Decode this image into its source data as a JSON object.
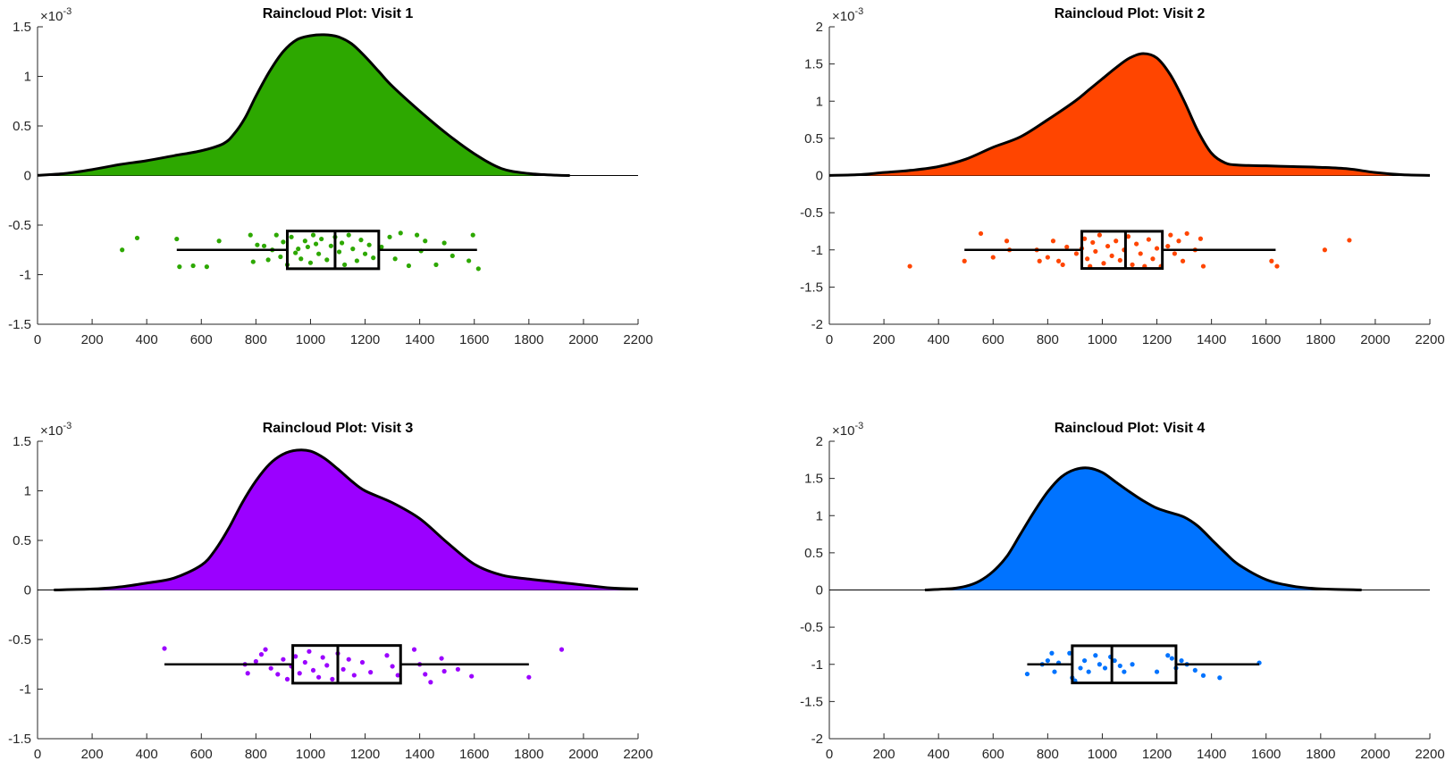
{
  "figure": {
    "background": "#ffffff"
  },
  "chart_data": [
    {
      "type": "raincloud",
      "title": "Raincloud Plot: Visit 1",
      "color": "#2DA800",
      "exponent_label": "10",
      "exponent_power": "-3",
      "xlim": [
        0,
        2200
      ],
      "ylim": [
        -1.5,
        1.5
      ],
      "xticks": [
        0,
        200,
        400,
        600,
        800,
        1000,
        1200,
        1400,
        1600,
        1800,
        2000,
        2200
      ],
      "yticks": [
        -1.5,
        -1,
        -0.5,
        0,
        0.5,
        1,
        1.5
      ],
      "xtick_labels": [
        "0",
        "200",
        "400",
        "600",
        "800",
        "1000",
        "1200",
        "1400",
        "1600",
        "1800",
        "2000",
        "2200"
      ],
      "ytick_labels": [
        "-1.5",
        "-1",
        "-0.5",
        "0",
        "0.5",
        "1",
        "1.5"
      ],
      "density": {
        "x": [
          0,
          100,
          200,
          300,
          400,
          500,
          600,
          680,
          720,
          760,
          800,
          850,
          900,
          950,
          1000,
          1050,
          1100,
          1150,
          1200,
          1250,
          1300,
          1400,
          1500,
          1600,
          1700,
          1800,
          1900,
          1950
        ],
        "y": [
          0.002,
          0.02,
          0.06,
          0.11,
          0.15,
          0.2,
          0.25,
          0.32,
          0.42,
          0.58,
          0.8,
          1.05,
          1.25,
          1.37,
          1.41,
          1.42,
          1.4,
          1.33,
          1.2,
          1.05,
          0.9,
          0.65,
          0.42,
          0.22,
          0.07,
          0.02,
          0.003,
          0.0
        ]
      },
      "boxplot": {
        "y": -0.75,
        "half_height": 0.19,
        "whisker_low": 510,
        "q1": 915,
        "median": 1090,
        "q3": 1250,
        "whisker_high": 1610
      },
      "points": [
        [
          310,
          -0.75
        ],
        [
          365,
          -0.63
        ],
        [
          510,
          -0.64
        ],
        [
          520,
          -0.92
        ],
        [
          570,
          -0.91
        ],
        [
          620,
          -0.92
        ],
        [
          665,
          -0.66
        ],
        [
          780,
          -0.6
        ],
        [
          790,
          -0.87
        ],
        [
          805,
          -0.7
        ],
        [
          830,
          -0.71
        ],
        [
          845,
          -0.85
        ],
        [
          860,
          -0.75
        ],
        [
          875,
          -0.6
        ],
        [
          890,
          -0.82
        ],
        [
          900,
          -0.67
        ],
        [
          915,
          -0.9
        ],
        [
          930,
          -0.62
        ],
        [
          945,
          -0.78
        ],
        [
          955,
          -0.74
        ],
        [
          965,
          -0.84
        ],
        [
          980,
          -0.66
        ],
        [
          990,
          -0.72
        ],
        [
          1000,
          -0.88
        ],
        [
          1010,
          -0.6
        ],
        [
          1020,
          -0.69
        ],
        [
          1030,
          -0.79
        ],
        [
          1040,
          -0.64
        ],
        [
          1060,
          -0.85
        ],
        [
          1075,
          -0.71
        ],
        [
          1090,
          -0.62
        ],
        [
          1105,
          -0.77
        ],
        [
          1115,
          -0.68
        ],
        [
          1125,
          -0.9
        ],
        [
          1140,
          -0.6
        ],
        [
          1155,
          -0.74
        ],
        [
          1170,
          -0.86
        ],
        [
          1185,
          -0.65
        ],
        [
          1200,
          -0.79
        ],
        [
          1215,
          -0.7
        ],
        [
          1230,
          -0.83
        ],
        [
          1260,
          -0.72
        ],
        [
          1290,
          -0.62
        ],
        [
          1310,
          -0.84
        ],
        [
          1330,
          -0.58
        ],
        [
          1360,
          -0.91
        ],
        [
          1390,
          -0.6
        ],
        [
          1405,
          -0.76
        ],
        [
          1420,
          -0.66
        ],
        [
          1460,
          -0.9
        ],
        [
          1490,
          -0.68
        ],
        [
          1520,
          -0.81
        ],
        [
          1580,
          -0.86
        ],
        [
          1595,
          -0.6
        ],
        [
          1615,
          -0.94
        ]
      ]
    },
    {
      "type": "raincloud",
      "title": "Raincloud Plot: Visit 2",
      "color": "#FF4500",
      "exponent_label": "10",
      "exponent_power": "-3",
      "xlim": [
        0,
        2200
      ],
      "ylim": [
        -2,
        2
      ],
      "xticks": [
        0,
        200,
        400,
        600,
        800,
        1000,
        1200,
        1400,
        1600,
        1800,
        2000,
        2200
      ],
      "yticks": [
        -2,
        -1.5,
        -1,
        -0.5,
        0,
        0.5,
        1,
        1.5,
        2
      ],
      "xtick_labels": [
        "0",
        "200",
        "400",
        "600",
        "800",
        "1000",
        "1200",
        "1400",
        "1600",
        "1800",
        "2000",
        "2200"
      ],
      "ytick_labels": [
        "-2",
        "-1.5",
        "-1",
        "-0.5",
        "0",
        "0.5",
        "1",
        "1.5",
        "2"
      ],
      "density": {
        "x": [
          0,
          100,
          200,
          300,
          400,
          500,
          600,
          700,
          800,
          900,
          950,
          1000,
          1050,
          1100,
          1150,
          1200,
          1250,
          1300,
          1350,
          1400,
          1450,
          1500,
          1600,
          1700,
          1800,
          1900,
          2000,
          2100,
          2200
        ],
        "y": [
          0.002,
          0.01,
          0.04,
          0.07,
          0.12,
          0.22,
          0.38,
          0.52,
          0.75,
          1.0,
          1.15,
          1.3,
          1.45,
          1.58,
          1.64,
          1.58,
          1.35,
          1.0,
          0.6,
          0.3,
          0.17,
          0.14,
          0.13,
          0.12,
          0.11,
          0.09,
          0.04,
          0.01,
          0.002
        ]
      },
      "boxplot": {
        "y": -1.0,
        "half_height": 0.25,
        "whisker_low": 495,
        "q1": 925,
        "median": 1085,
        "q3": 1220,
        "whisker_high": 1635
      },
      "points": [
        [
          295,
          -1.22
        ],
        [
          495,
          -1.15
        ],
        [
          555,
          -0.78
        ],
        [
          600,
          -1.1
        ],
        [
          650,
          -0.88
        ],
        [
          660,
          -1.0
        ],
        [
          760,
          -1.0
        ],
        [
          770,
          -1.15
        ],
        [
          800,
          -1.1
        ],
        [
          820,
          -0.88
        ],
        [
          840,
          -1.15
        ],
        [
          855,
          -1.2
        ],
        [
          870,
          -0.96
        ],
        [
          905,
          -1.05
        ],
        [
          925,
          -0.98
        ],
        [
          935,
          -0.85
        ],
        [
          945,
          -1.12
        ],
        [
          955,
          -1.22
        ],
        [
          965,
          -0.9
        ],
        [
          975,
          -1.02
        ],
        [
          990,
          -0.8
        ],
        [
          1005,
          -1.18
        ],
        [
          1020,
          -0.95
        ],
        [
          1035,
          -1.08
        ],
        [
          1050,
          -0.88
        ],
        [
          1065,
          -1.14
        ],
        [
          1080,
          -1.0
        ],
        [
          1095,
          -0.82
        ],
        [
          1110,
          -1.2
        ],
        [
          1125,
          -0.92
        ],
        [
          1140,
          -1.05
        ],
        [
          1155,
          -1.22
        ],
        [
          1170,
          -0.86
        ],
        [
          1185,
          -1.12
        ],
        [
          1200,
          -0.98
        ],
        [
          1215,
          -1.22
        ],
        [
          1240,
          -0.95
        ],
        [
          1250,
          -0.8
        ],
        [
          1265,
          -1.05
        ],
        [
          1280,
          -0.88
        ],
        [
          1295,
          -1.15
        ],
        [
          1310,
          -0.78
        ],
        [
          1340,
          -1.0
        ],
        [
          1360,
          -0.85
        ],
        [
          1370,
          -1.22
        ],
        [
          1620,
          -1.15
        ],
        [
          1640,
          -1.22
        ],
        [
          1815,
          -1.0
        ],
        [
          1905,
          -0.87
        ]
      ]
    },
    {
      "type": "raincloud",
      "title": "Raincloud Plot: Visit 3",
      "color": "#9B00FF",
      "exponent_label": "10",
      "exponent_power": "-3",
      "xlim": [
        0,
        2200
      ],
      "ylim": [
        -1.5,
        1.5
      ],
      "xticks": [
        0,
        200,
        400,
        600,
        800,
        1000,
        1200,
        1400,
        1600,
        1800,
        2000,
        2200
      ],
      "yticks": [
        -1.5,
        -1,
        -0.5,
        0,
        0.5,
        1,
        1.5
      ],
      "xtick_labels": [
        "0",
        "200",
        "400",
        "600",
        "800",
        "1000",
        "1200",
        "1400",
        "1600",
        "1800",
        "2000",
        "2200"
      ],
      "ytick_labels": [
        "-1.5",
        "-1",
        "-0.5",
        "0",
        "0.5",
        "1",
        "1.5"
      ],
      "density": {
        "x": [
          60,
          200,
          300,
          400,
          500,
          600,
          650,
          700,
          750,
          800,
          850,
          900,
          950,
          1000,
          1050,
          1100,
          1150,
          1200,
          1300,
          1400,
          1500,
          1600,
          1700,
          1800,
          1900,
          2000,
          2100,
          2200
        ],
        "y": [
          0.0,
          0.01,
          0.03,
          0.07,
          0.12,
          0.25,
          0.4,
          0.62,
          0.88,
          1.1,
          1.27,
          1.37,
          1.41,
          1.4,
          1.33,
          1.22,
          1.1,
          1.0,
          0.88,
          0.72,
          0.48,
          0.26,
          0.15,
          0.11,
          0.08,
          0.05,
          0.02,
          0.01
        ]
      },
      "boxplot": {
        "y": -0.75,
        "half_height": 0.19,
        "whisker_low": 465,
        "q1": 935,
        "median": 1100,
        "q3": 1330,
        "whisker_high": 1800
      },
      "points": [
        [
          465,
          -0.59
        ],
        [
          760,
          -0.75
        ],
        [
          770,
          -0.84
        ],
        [
          800,
          -0.72
        ],
        [
          820,
          -0.65
        ],
        [
          835,
          -0.6
        ],
        [
          855,
          -0.79
        ],
        [
          880,
          -0.85
        ],
        [
          900,
          -0.7
        ],
        [
          915,
          -0.9
        ],
        [
          930,
          -0.77
        ],
        [
          945,
          -0.67
        ],
        [
          960,
          -0.84
        ],
        [
          980,
          -0.73
        ],
        [
          995,
          -0.62
        ],
        [
          1010,
          -0.81
        ],
        [
          1030,
          -0.88
        ],
        [
          1045,
          -0.68
        ],
        [
          1060,
          -0.76
        ],
        [
          1080,
          -0.9
        ],
        [
          1100,
          -0.64
        ],
        [
          1120,
          -0.8
        ],
        [
          1140,
          -0.7
        ],
        [
          1160,
          -0.86
        ],
        [
          1190,
          -0.73
        ],
        [
          1220,
          -0.83
        ],
        [
          1280,
          -0.66
        ],
        [
          1300,
          -0.77
        ],
        [
          1320,
          -0.86
        ],
        [
          1380,
          -0.6
        ],
        [
          1400,
          -0.75
        ],
        [
          1420,
          -0.85
        ],
        [
          1440,
          -0.93
        ],
        [
          1480,
          -0.69
        ],
        [
          1490,
          -0.82
        ],
        [
          1540,
          -0.8
        ],
        [
          1590,
          -0.87
        ],
        [
          1800,
          -0.88
        ],
        [
          1920,
          -0.6
        ]
      ]
    },
    {
      "type": "raincloud",
      "title": "Raincloud Plot: Visit 4",
      "color": "#0073FF",
      "exponent_label": "10",
      "exponent_power": "-3",
      "xlim": [
        0,
        2200
      ],
      "ylim": [
        -2,
        2
      ],
      "xticks": [
        0,
        200,
        400,
        600,
        800,
        1000,
        1200,
        1400,
        1600,
        1800,
        2000,
        2200
      ],
      "yticks": [
        -2,
        -1.5,
        -1,
        -0.5,
        0,
        0.5,
        1,
        1.5,
        2
      ],
      "xtick_labels": [
        "0",
        "200",
        "400",
        "600",
        "800",
        "1000",
        "1200",
        "1400",
        "1600",
        "1800",
        "2000",
        "2200"
      ],
      "ytick_labels": [
        "-2",
        "-1.5",
        "-1",
        "-0.5",
        "0",
        "0.5",
        "1",
        "1.5",
        "2"
      ],
      "density": {
        "x": [
          350,
          450,
          500,
          550,
          600,
          650,
          700,
          750,
          800,
          850,
          900,
          950,
          1000,
          1050,
          1100,
          1150,
          1200,
          1250,
          1300,
          1350,
          1400,
          1450,
          1500,
          1600,
          1700,
          1800,
          1950
        ],
        "y": [
          0.0,
          0.02,
          0.05,
          0.12,
          0.25,
          0.45,
          0.75,
          1.05,
          1.32,
          1.52,
          1.62,
          1.64,
          1.58,
          1.45,
          1.32,
          1.2,
          1.1,
          1.04,
          0.98,
          0.86,
          0.68,
          0.5,
          0.34,
          0.14,
          0.05,
          0.015,
          0.0
        ]
      },
      "boxplot": {
        "y": -1.0,
        "half_height": 0.25,
        "whisker_low": 725,
        "q1": 890,
        "median": 1035,
        "q3": 1270,
        "whisker_high": 1575
      },
      "points": [
        [
          725,
          -1.13
        ],
        [
          780,
          -1.0
        ],
        [
          800,
          -0.95
        ],
        [
          815,
          -0.85
        ],
        [
          825,
          -1.1
        ],
        [
          840,
          -0.98
        ],
        [
          880,
          -0.85
        ],
        [
          890,
          -1.18
        ],
        [
          900,
          -1.22
        ],
        [
          920,
          -1.05
        ],
        [
          935,
          -0.95
        ],
        [
          950,
          -1.1
        ],
        [
          975,
          -0.88
        ],
        [
          990,
          -1.0
        ],
        [
          1010,
          -1.05
        ],
        [
          1030,
          -0.9
        ],
        [
          1045,
          -0.95
        ],
        [
          1065,
          -1.02
        ],
        [
          1080,
          -1.1
        ],
        [
          1110,
          -1.0
        ],
        [
          1200,
          -1.1
        ],
        [
          1240,
          -0.88
        ],
        [
          1255,
          -0.92
        ],
        [
          1270,
          -1.05
        ],
        [
          1290,
          -0.95
        ],
        [
          1310,
          -1.0
        ],
        [
          1340,
          -1.08
        ],
        [
          1370,
          -1.15
        ],
        [
          1430,
          -1.18
        ],
        [
          1575,
          -0.98
        ]
      ]
    }
  ]
}
